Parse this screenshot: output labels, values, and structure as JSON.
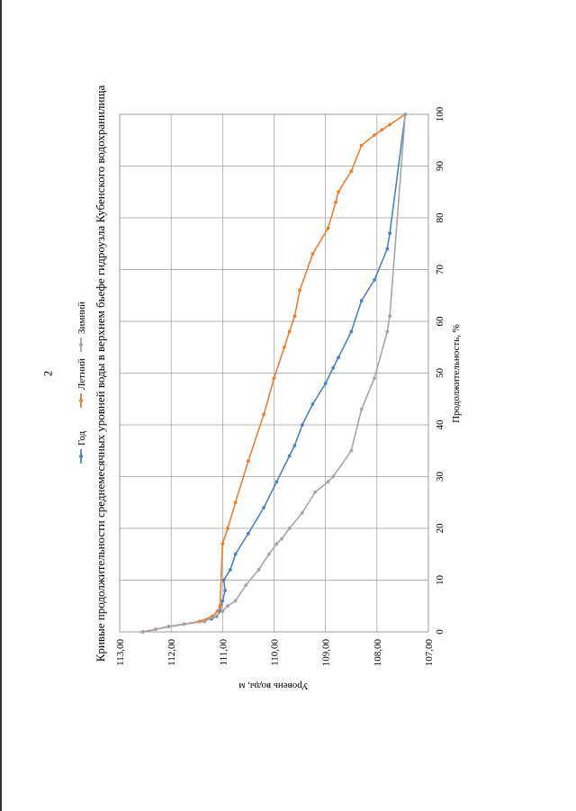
{
  "page_number": "2",
  "chart_data": {
    "type": "line",
    "title": "Кривые продолжительности среднемесячных уровней воды в верхнем бьефе гидроузла Кубенского водохранилища",
    "xlabel": "Продолжительность, %",
    "ylabel": "Уровень воды, м",
    "xlim": [
      0,
      100
    ],
    "ylim": [
      107,
      113
    ],
    "x_ticks": [
      "0",
      "10",
      "20",
      "30",
      "40",
      "50",
      "60",
      "70",
      "80",
      "90",
      "100"
    ],
    "y_ticks": [
      "113,00",
      "112,00",
      "111,00",
      "110,00",
      "109,00",
      "108,00",
      "107,00"
    ],
    "grid": true,
    "legend_position": "top",
    "series": [
      {
        "name": "Год",
        "color": "#4f81bd",
        "points": [
          [
            0,
            112.55
          ],
          [
            0.5,
            112.3
          ],
          [
            1,
            112.05
          ],
          [
            1.5,
            111.75
          ],
          [
            2,
            111.45
          ],
          [
            2.5,
            111.22
          ],
          [
            3,
            111.12
          ],
          [
            4,
            111.05
          ],
          [
            6,
            111.0
          ],
          [
            8,
            110.95
          ],
          [
            10,
            110.98
          ],
          [
            12,
            110.85
          ],
          [
            15,
            110.75
          ],
          [
            19,
            110.5
          ],
          [
            24,
            110.2
          ],
          [
            29,
            109.95
          ],
          [
            34,
            109.7
          ],
          [
            36,
            109.6
          ],
          [
            40,
            109.45
          ],
          [
            44,
            109.25
          ],
          [
            48,
            109.0
          ],
          [
            51,
            108.85
          ],
          [
            53,
            108.75
          ],
          [
            58,
            108.5
          ],
          [
            64,
            108.3
          ],
          [
            68,
            108.05
          ],
          [
            74,
            107.8
          ],
          [
            77,
            107.75
          ],
          [
            100,
            107.45
          ]
        ]
      },
      {
        "name": "Летний",
        "color": "#ed7d31",
        "points": [
          [
            0,
            112.55
          ],
          [
            0.5,
            112.3
          ],
          [
            1,
            112.05
          ],
          [
            1.5,
            111.75
          ],
          [
            2,
            111.45
          ],
          [
            3,
            111.2
          ],
          [
            4,
            111.1
          ],
          [
            5,
            111.05
          ],
          [
            17,
            111.0
          ],
          [
            20,
            110.9
          ],
          [
            25,
            110.75
          ],
          [
            33,
            110.5
          ],
          [
            42,
            110.2
          ],
          [
            49,
            110.0
          ],
          [
            55,
            109.8
          ],
          [
            58,
            109.7
          ],
          [
            61,
            109.6
          ],
          [
            66,
            109.5
          ],
          [
            73,
            109.25
          ],
          [
            78,
            108.95
          ],
          [
            83,
            108.8
          ],
          [
            85,
            108.75
          ],
          [
            89,
            108.5
          ],
          [
            94,
            108.3
          ],
          [
            96,
            108.05
          ],
          [
            97,
            107.9
          ],
          [
            98,
            107.75
          ],
          [
            100,
            107.45
          ]
        ]
      },
      {
        "name": "Зимний",
        "color": "#a5a5a5",
        "points": [
          [
            0,
            112.55
          ],
          [
            0.5,
            112.3
          ],
          [
            1,
            112.05
          ],
          [
            1.5,
            111.75
          ],
          [
            2,
            111.35
          ],
          [
            3,
            111.15
          ],
          [
            4,
            111.0
          ],
          [
            5,
            110.9
          ],
          [
            6,
            110.75
          ],
          [
            9,
            110.55
          ],
          [
            12,
            110.3
          ],
          [
            15,
            110.1
          ],
          [
            17,
            109.95
          ],
          [
            18,
            109.85
          ],
          [
            20,
            109.7
          ],
          [
            23,
            109.45
          ],
          [
            27,
            109.2
          ],
          [
            29,
            108.95
          ],
          [
            30,
            108.85
          ],
          [
            35,
            108.5
          ],
          [
            43,
            108.3
          ],
          [
            49,
            108.05
          ],
          [
            58,
            107.8
          ],
          [
            61,
            107.75
          ],
          [
            100,
            107.45
          ]
        ]
      }
    ]
  }
}
